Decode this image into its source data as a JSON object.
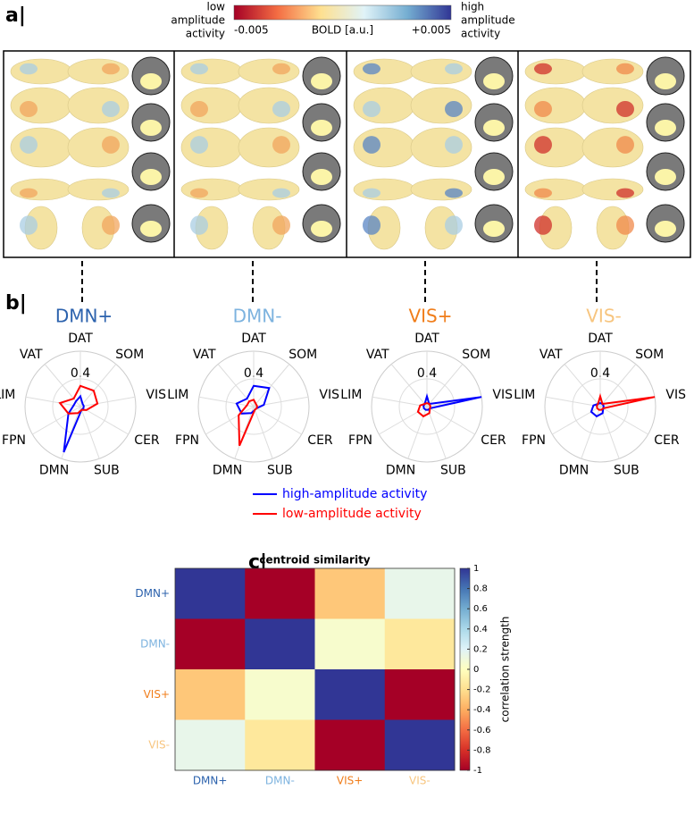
{
  "panel_a": {
    "label": "a|",
    "low_label": [
      "low",
      "amplitude",
      "activity"
    ],
    "high_label": [
      "high",
      "amplitude",
      "activity"
    ],
    "colorbar": {
      "label": "BOLD [a.u.]",
      "lim": [
        -0.005,
        0.005
      ],
      "ticks": [
        -0.005,
        {
          "value": 0.005,
          "label": "+0.005"
        }
      ],
      "colors": [
        "#a50026",
        "#f46d43",
        "#fee090",
        "#e0f3f8",
        "#74add1",
        "#313695"
      ]
    }
  },
  "panel_b": {
    "label": "b|"
  },
  "panel_c": {
    "label": "c|"
  },
  "chart_data": [
    {
      "type": "radar",
      "title": "DMN+",
      "title_color": "#2c62ad",
      "axes": [
        "DAT",
        "SOM",
        "VIS",
        "CER",
        "SUB",
        "DMN",
        "FPN",
        "LIM",
        "VAT"
      ],
      "rlim": [
        0,
        0.8
      ],
      "rticks": [
        0.4
      ],
      "series": [
        {
          "name": "high-amplitude activity",
          "color": "#0000ff",
          "values": [
            0.15,
            0.05,
            0.05,
            0.05,
            0.05,
            0.7,
            0.2,
            0.1,
            0.1
          ]
        },
        {
          "name": "low-amplitude activity",
          "color": "#ff0000",
          "values": [
            0.3,
            0.3,
            0.25,
            0.1,
            0.05,
            0.1,
            0.2,
            0.3,
            0.15
          ]
        }
      ]
    },
    {
      "type": "radar",
      "title": "DMN-",
      "title_color": "#7db3df",
      "axes": [
        "DAT",
        "SOM",
        "VIS",
        "CER",
        "SUB",
        "DMN",
        "FPN",
        "LIM",
        "VAT"
      ],
      "rlim": [
        0,
        0.8
      ],
      "rticks": [
        0.4
      ],
      "series": [
        {
          "name": "high-amplitude activity",
          "color": "#0000ff",
          "values": [
            0.3,
            0.35,
            0.15,
            0.05,
            0.05,
            0.1,
            0.2,
            0.25,
            0.15
          ]
        },
        {
          "name": "low-amplitude activity",
          "color": "#ff0000",
          "values": [
            0.1,
            0.05,
            0.05,
            0.05,
            0.05,
            0.6,
            0.25,
            0.1,
            0.1
          ]
        }
      ]
    },
    {
      "type": "radar",
      "title": "VIS+",
      "title_color": "#f07d1a",
      "axes": [
        "DAT",
        "SOM",
        "VIS",
        "CER",
        "SUB",
        "DMN",
        "FPN",
        "LIM",
        "VAT"
      ],
      "rlim": [
        0,
        0.8
      ],
      "rticks": [
        0.4
      ],
      "series": [
        {
          "name": "high-amplitude activity",
          "color": "#0000ff",
          "values": [
            0.15,
            0.05,
            0.8,
            0.05,
            0.05,
            0.05,
            0.05,
            0.05,
            0.05
          ]
        },
        {
          "name": "low-amplitude activity",
          "color": "#ff0000",
          "values": [
            0.05,
            0.05,
            0.05,
            0.05,
            0.1,
            0.15,
            0.15,
            0.1,
            0.05
          ]
        }
      ]
    },
    {
      "type": "radar",
      "title": "VIS-",
      "title_color": "#f7c57f",
      "axes": [
        "DAT",
        "SOM",
        "VIS",
        "CER",
        "SUB",
        "DMN",
        "FPN",
        "LIM",
        "VAT"
      ],
      "rlim": [
        0,
        0.8
      ],
      "rticks": [
        0.4
      ],
      "series": [
        {
          "name": "high-amplitude activity",
          "color": "#0000ff",
          "values": [
            0.05,
            0.05,
            0.05,
            0.05,
            0.1,
            0.15,
            0.15,
            0.1,
            0.05
          ]
        },
        {
          "name": "low-amplitude activity",
          "color": "#ff0000",
          "values": [
            0.15,
            0.05,
            0.8,
            0.05,
            0.05,
            0.05,
            0.05,
            0.05,
            0.05
          ]
        }
      ]
    },
    {
      "type": "heatmap",
      "title": "centroid similarity",
      "x": [
        "DMN+",
        "DMN-",
        "VIS+",
        "VIS-"
      ],
      "y": [
        "DMN+",
        "DMN-",
        "VIS+",
        "VIS-"
      ],
      "category_colors": [
        "#2c62ad",
        "#7db3df",
        "#f07d1a",
        "#f7c57f"
      ],
      "values": [
        [
          1,
          -1,
          -0.3,
          0.15
        ],
        [
          -1,
          1,
          0.05,
          -0.15
        ],
        [
          -0.3,
          0.05,
          1,
          -1
        ],
        [
          0.15,
          -0.15,
          -1,
          1
        ]
      ],
      "colorbar": {
        "label": "correlation strength",
        "lim": [
          -1,
          1
        ],
        "ticks": [
          -1,
          -0.8,
          -0.6,
          -0.4,
          -0.2,
          0,
          0.2,
          0.4,
          0.6,
          0.8,
          1
        ],
        "colors": [
          "#a50026",
          "#d73027",
          "#f46d43",
          "#fdae61",
          "#fee090",
          "#ffffbf",
          "#e0f3f8",
          "#abd9e9",
          "#74add1",
          "#4575b4",
          "#313695"
        ]
      }
    }
  ]
}
